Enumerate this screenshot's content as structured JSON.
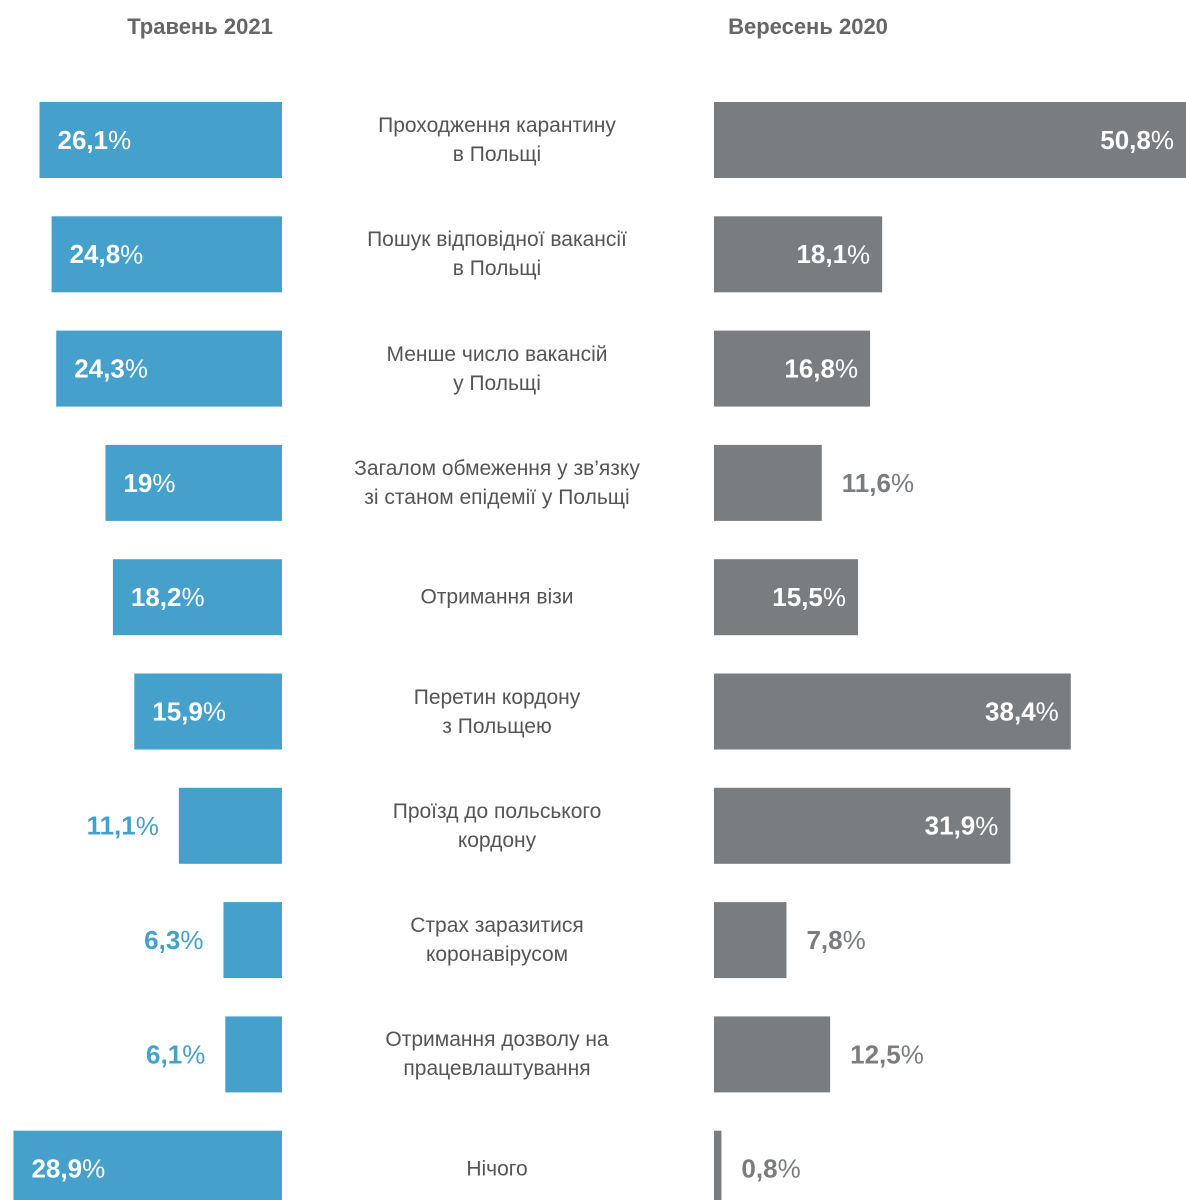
{
  "chart_data": {
    "type": "butterfly",
    "categories": [
      "Проходження карантину\nв Польщі",
      "Пошук відповідної вакансії\nв Польщі",
      "Менше число вакансій\nу Польщі",
      "Загалом обмеження у зв’язку\nзі станом епідемії у Польщі",
      "Отримання візи",
      "Перетин кордону\nз Польщею",
      "Проїзд до польського\nкордону",
      "Страх заразитися\nкоронавірусом",
      "Отримання дозволу на\nпрацевлаштування",
      "Нічого"
    ],
    "series": [
      {
        "name": "Травень 2021",
        "color": "#45a0cc",
        "values": [
          26.1,
          24.8,
          24.3,
          19,
          18.2,
          15.9,
          11.1,
          6.3,
          6.1,
          28.9
        ],
        "value_labels": [
          "26,1%",
          "24,8%",
          "24,3%",
          "19%",
          "18,2%",
          "15,9%",
          "11,1%",
          "6,3%",
          "6,1%",
          "28,9%"
        ]
      },
      {
        "name": "Вересень 2020",
        "color": "#7a7d80",
        "values": [
          50.8,
          18.1,
          16.8,
          11.6,
          15.5,
          38.4,
          31.9,
          7.8,
          12.5,
          0.8
        ],
        "value_labels": [
          "50,8%",
          "18,1%",
          "16,8%",
          "11,6%",
          "15,5%",
          "38,4%",
          "31,9%",
          "7,8%",
          "12,5%",
          "0,8%"
        ]
      }
    ],
    "xlim": [
      0,
      50.8
    ]
  }
}
